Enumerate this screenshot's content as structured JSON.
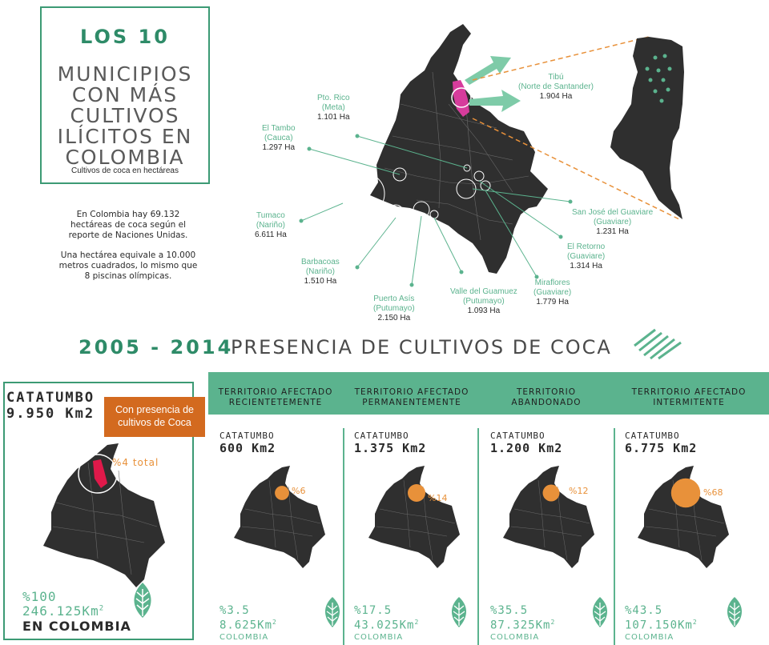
{
  "title": {
    "line1": "LOS 10",
    "line2": "MUNICIPIOS",
    "line3": "CON MÁS",
    "line4": "CULTIVOS",
    "line5": "ILÍCITOS EN",
    "line6": "COLOMBIA",
    "subtitle": "Cultivos de coca en hectáreas"
  },
  "intro": {
    "p1": "En Colombia hay 69.132 hectáreas de coca según el reporte de Naciones Unidas.",
    "p2": "Una hectárea equivale a 10.000 metros cuadrados, lo mismo que 8 piscinas olímpicas."
  },
  "municipalities": [
    {
      "name": "Tibú",
      "dept": "(Norte de Santander)",
      "ha": "1.904 Ha"
    },
    {
      "name": "Pto. Rico",
      "dept": "(Meta)",
      "ha": "1.101 Ha"
    },
    {
      "name": "El Tambo",
      "dept": "(Cauca)",
      "ha": "1.297 Ha"
    },
    {
      "name": "Tumaco",
      "dept": "(Nariño)",
      "ha": "6.611 Ha"
    },
    {
      "name": "Barbacoas",
      "dept": "(Nariño)",
      "ha": "1.510 Ha"
    },
    {
      "name": "Puerto Asís",
      "dept": "(Putumayo)",
      "ha": "2.150 Ha"
    },
    {
      "name": "Valle del Guamuez",
      "dept": "(Putumayo)",
      "ha": "1.093 Ha"
    },
    {
      "name": "Miraflores",
      "dept": "(Guaviare)",
      "ha": "1.779 Ha"
    },
    {
      "name": "El Retorno",
      "dept": "(Guaviare)",
      "ha": "1.314 Ha"
    },
    {
      "name": "San José del Guaviare",
      "dept": "(Guaviare)",
      "ha": "1.231 Ha"
    }
  ],
  "heading": {
    "years": "2005  - 2014",
    "text": "PRESENCIA DE CULTIVOS DE COCA"
  },
  "catatumbo": {
    "title1": "CATATUMBO",
    "title2": "9.950 Km2",
    "badge": "Con presencia de cultivos de Coca",
    "pct": "%4 total",
    "total_pct": "%100",
    "total_km": "246.125Km",
    "total_km_sup": "2",
    "country": "EN COLOMBIA"
  },
  "panels": [
    {
      "header": "TERRITORIO AFECTADO RECIENTETEMENTE",
      "cat": "CATATUMBO",
      "km": "600 Km2",
      "bubble": "%6",
      "bubble_frac": 0.06,
      "pct": "%3.5",
      "km_total": "8.625Km",
      "km_sup": "2",
      "country": "COLOMBIA"
    },
    {
      "header": "TERRITORIO AFECTADO PERMANENTEMENTE",
      "cat": "CATATUMBO",
      "km": "1.375 Km2",
      "bubble": "%14",
      "bubble_frac": 0.14,
      "pct": "%17.5",
      "km_total": "43.025Km",
      "km_sup": "2",
      "country": "COLOMBIA"
    },
    {
      "header": "TERRITORIO ABANDONADO",
      "cat": "CATATUMBO",
      "km": "1.200 Km2",
      "bubble": "%12",
      "bubble_frac": 0.12,
      "pct": "%35.5",
      "km_total": "87.325Km",
      "km_sup": "2",
      "country": "COLOMBIA"
    },
    {
      "header": "TERRITORIO AFECTADO INTERMITENTE",
      "cat": "CATATUMBO",
      "km": "6.775 Km2",
      "bubble": "%68",
      "bubble_frac": 0.68,
      "pct": "%43.5",
      "km_total": "107.150Km",
      "km_sup": "2",
      "country": "COLOMBIA"
    }
  ],
  "colors": {
    "accent": "#2e8b68",
    "teal": "#5bb38e",
    "map": "#2f2f2f",
    "highlight_pink": "#d63c9c",
    "highlight_red": "#e0194a",
    "orange": "#e8913a",
    "badge": "#d36a1f"
  }
}
